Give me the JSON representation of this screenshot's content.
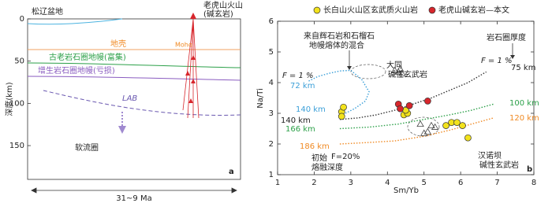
{
  "chart_data": [
    {
      "type": "cross-section",
      "panel_label": "a",
      "ylabel": "深度(km)",
      "ylim": [
        0,
        190
      ],
      "yticks": [
        0,
        50,
        100,
        150
      ],
      "labels": {
        "basin": "松辽盆地",
        "volcano": [
          "老虎山火山",
          "(碱玄岩)"
        ],
        "crust": "地壳",
        "moho": "Moho",
        "old_mantle": "古老岩石圈地幔(富集)",
        "accreted_mantle": "增生岩石圈地幔(亏损)",
        "lab": "LAB",
        "asthenosphere": "软流圈",
        "time": "31~9 Ma"
      }
    },
    {
      "type": "scatter",
      "panel_label": "b",
      "xlabel": "Sm/Yb",
      "ylabel": "Na/Ti",
      "xlim": [
        1,
        8
      ],
      "ylim": [
        1,
        6
      ],
      "xticks": [
        1,
        2,
        3,
        4,
        5,
        6,
        7,
        8
      ],
      "yticks": [
        1,
        2,
        3,
        4,
        5,
        6
      ],
      "series": [
        {
          "name": "长白山火山区玄武质火山岩",
          "color": "#f2e21c",
          "x": [
            2.75,
            2.75,
            2.8,
            4.45,
            4.55,
            4.5,
            5.6,
            5.75,
            5.9,
            6.05,
            6.2
          ],
          "y": [
            3.05,
            2.9,
            3.2,
            2.95,
            3.0,
            3.1,
            2.6,
            2.7,
            2.7,
            2.6,
            2.2
          ]
        },
        {
          "name": "老虎山碱玄岩—本文",
          "color": "#d7262c",
          "x": [
            4.3,
            4.35,
            4.6,
            5.1
          ],
          "y": [
            3.3,
            3.15,
            3.25,
            3.4
          ]
        }
      ],
      "reference_groups": [
        {
          "label": [
            "大同",
            "碱性玄武岩"
          ],
          "x": [
            4.2,
            4.3,
            4.4,
            4.35
          ],
          "y": [
            4.4,
            4.35,
            4.3,
            4.45
          ]
        },
        {
          "label": [
            "汉诺坝",
            "碱性玄武岩"
          ],
          "x": [
            4.9,
            5.0,
            5.1,
            5.2,
            5.3
          ],
          "y": [
            2.65,
            2.35,
            2.4,
            2.6,
            2.55
          ]
        }
      ],
      "model_curves": [
        {
          "color": "#3b9fd8",
          "x": [
            1.85,
            2.1,
            2.4,
            2.7,
            3.0,
            3.3,
            3.5,
            3.4,
            3.1,
            2.85
          ],
          "y": [
            4.05,
            4.2,
            4.3,
            4.38,
            4.4,
            4.1,
            3.7,
            3.4,
            3.15,
            3.0
          ]
        },
        {
          "color": "#333333",
          "x": [
            2.7,
            3.2,
            3.7,
            4.2,
            4.7,
            5.2,
            5.7,
            6.2,
            6.7
          ],
          "y": [
            2.8,
            2.85,
            2.95,
            3.1,
            3.3,
            3.5,
            3.75,
            4.0,
            4.35
          ]
        },
        {
          "color": "#2ca049",
          "x": [
            2.7,
            3.5,
            4.3,
            5.0,
            5.7,
            6.3,
            6.9
          ],
          "y": [
            2.5,
            2.55,
            2.65,
            2.8,
            2.95,
            3.1,
            3.3
          ]
        },
        {
          "color": "#f08a24",
          "x": [
            2.7,
            3.5,
            4.2,
            5.0,
            5.7,
            6.3,
            6.9
          ],
          "y": [
            2.0,
            2.05,
            2.1,
            2.25,
            2.45,
            2.65,
            2.85
          ]
        }
      ],
      "annotations": {
        "f_left": "F = 1 %",
        "km72": "72 km",
        "mixing": [
          "来自辉石岩和石榴石",
          "地幔熔体的混合"
        ],
        "thickness": "岩石圈厚度",
        "f_right": "F = 1 %",
        "km75": "75 km",
        "km100": "100 km",
        "km120": "120 km",
        "km140_blue": "140 km",
        "km140_black": "140 km",
        "km166": "166 km",
        "km186": "186 km",
        "f20": "F=20%",
        "initial": [
          "初始",
          "熔融深度"
        ]
      }
    }
  ]
}
